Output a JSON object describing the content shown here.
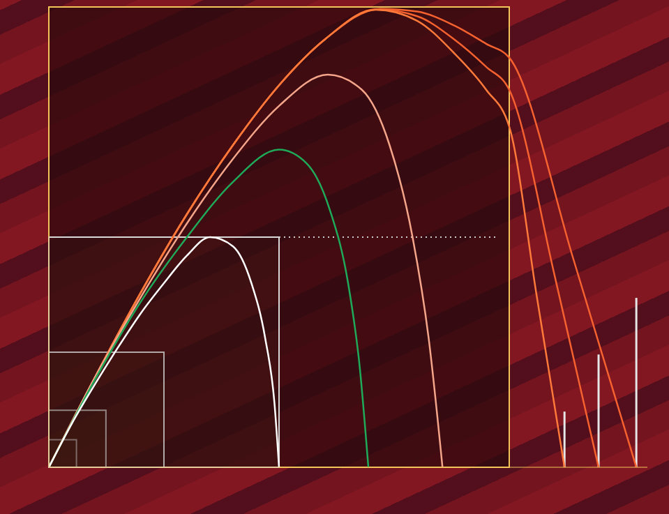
{
  "chart_data": {
    "type": "line",
    "tick_labels": false,
    "xlim": [
      0,
      130
    ],
    "ylim": [
      0,
      100
    ],
    "xticks": [
      0,
      2,
      4,
      6,
      8,
      10,
      12,
      14,
      16,
      18,
      20,
      22,
      24,
      26,
      28,
      30,
      32,
      34,
      36,
      38,
      40,
      42,
      44,
      46,
      48,
      50,
      52,
      54,
      56,
      58,
      60,
      62,
      64,
      66,
      68,
      70,
      72,
      74,
      76,
      78,
      80,
      82,
      84,
      86,
      88,
      90,
      92,
      94,
      96,
      98,
      100
    ],
    "yticks": [
      0,
      2,
      4,
      6,
      8,
      10,
      12,
      14,
      16,
      18,
      20,
      22,
      24,
      26,
      28,
      30,
      32,
      34,
      36,
      38,
      40,
      42,
      44,
      46,
      48,
      50,
      52,
      54,
      56,
      58,
      60,
      62,
      64,
      66,
      68,
      70,
      72,
      74,
      76,
      78,
      80,
      82,
      84,
      86,
      88,
      90,
      92,
      94,
      96,
      98,
      100
    ],
    "box": {
      "x": [
        0,
        100
      ],
      "y": [
        0,
        100
      ],
      "color": "#f2c45a"
    },
    "squares": {
      "sides": [
        6,
        12.4,
        25,
        50
      ],
      "color": "#d8d8d8"
    },
    "arrow": {
      "x": [
        50,
        97
      ],
      "y": 50,
      "color": "#cccccc"
    },
    "bars": {
      "x": [
        112,
        119.4,
        127.6
      ],
      "values": [
        12.1,
        24.5,
        36.8
      ],
      "color": "#e6e6e6"
    },
    "series": [
      {
        "color": "#f5612f",
        "x": [
          0,
          10,
          20,
          30,
          40,
          50,
          60,
          72,
          80,
          88,
          95,
          100,
          114,
          127.6
        ],
        "values": [
          0,
          19.5,
          38,
          55,
          70,
          83,
          93,
          99.6,
          99,
          96,
          92,
          89,
          45,
          0
        ]
      },
      {
        "color": "#f5612f",
        "x": [
          0,
          10,
          20,
          30,
          40,
          50,
          60,
          71,
          80,
          88,
          95,
          100,
          110,
          119.4
        ],
        "values": [
          0,
          19.5,
          38,
          55,
          70,
          83,
          93,
          99.5,
          98,
          93,
          87,
          82,
          41,
          0
        ]
      },
      {
        "color": "#ff7a3a",
        "x": [
          0,
          10,
          20,
          30,
          40,
          50,
          60,
          71,
          80,
          88,
          95,
          100,
          106,
          112
        ],
        "values": [
          0,
          19.5,
          38,
          55,
          70,
          83,
          93,
          99.4,
          97,
          90,
          82,
          74,
          37,
          0
        ]
      },
      {
        "color": "#f4a58a",
        "x": [
          0,
          10,
          20,
          30,
          40,
          50,
          60.6,
          68,
          74,
          79,
          82.5,
          85.5
        ],
        "values": [
          0,
          19.5,
          37,
          53,
          67,
          78.5,
          85.3,
          82,
          70,
          50,
          28,
          0
        ]
      },
      {
        "color": "#1faa5a",
        "x": [
          0,
          10,
          20,
          30,
          40,
          50,
          56,
          61,
          65,
          67.5,
          69.4
        ],
        "values": [
          0,
          19,
          36,
          50,
          62,
          69,
          66,
          56,
          40,
          22,
          0
        ]
      },
      {
        "color": "#ffffff",
        "x": [
          0,
          5,
          10,
          15,
          20,
          25,
          30,
          35,
          40,
          44,
          47,
          49,
          50
        ],
        "values": [
          0,
          9.5,
          18,
          26,
          33.5,
          40,
          46,
          50,
          48,
          40,
          28,
          14,
          0
        ]
      }
    ]
  }
}
